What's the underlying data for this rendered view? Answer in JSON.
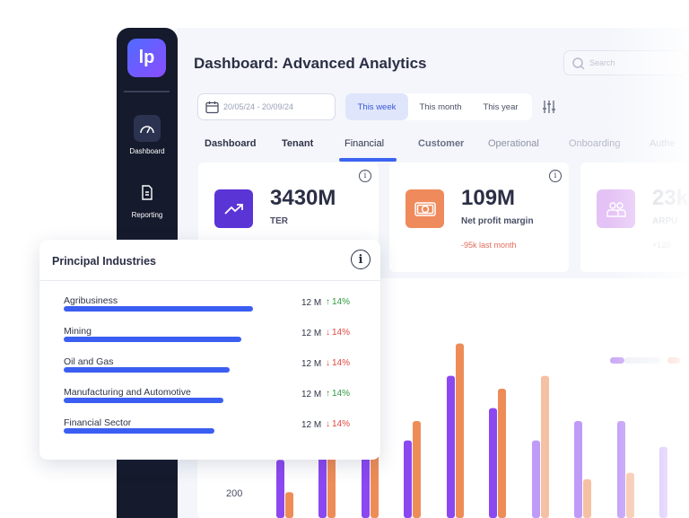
{
  "app": {
    "logo_text": "lp",
    "title": "Dashboard: Advanced Analytics",
    "search_placeholder": "Search"
  },
  "sidebar": {
    "items": [
      {
        "label": "Dashboard",
        "icon": "gauge-icon",
        "active": true
      },
      {
        "label": "Reporting",
        "icon": "document-icon",
        "active": false
      }
    ]
  },
  "filters": {
    "date_range": "20/05/24 - 20/09/24",
    "periods": [
      "This week",
      "This month",
      "This year"
    ],
    "active_period": "This week"
  },
  "tabs": [
    "Dashboard",
    "Tenant",
    "Financial",
    "Customer",
    "Operational",
    "Onboarding",
    "Authe"
  ],
  "active_tab": "Financial",
  "kpis": [
    {
      "value": "3430M",
      "label": "TER",
      "sub": "",
      "icon": "trending-up-icon",
      "color": "#5b34d6"
    },
    {
      "value": "109M",
      "label": "Net profit margin",
      "sub": "-95k last month",
      "icon": "cash-icon",
      "color": "#ef8a5c"
    },
    {
      "value": "23k",
      "label": "ARPU",
      "sub": "+120",
      "icon": "users-icon",
      "color": "#d9a9f2"
    }
  ],
  "chart_data": {
    "type": "bar",
    "y_tick_visible": "200",
    "series": [
      {
        "color": "#8b48f0",
        "values": [
          9,
          19,
          11,
          12,
          22,
          17,
          12,
          15,
          15,
          11
        ]
      },
      {
        "color": "#ee8c57",
        "values": [
          4,
          12,
          13,
          15,
          27,
          20,
          22,
          6,
          7,
          0
        ]
      }
    ],
    "legend_colors": [
      "#c8a7f5",
      "#f4b8a2"
    ]
  },
  "industries_panel": {
    "title": "Principal Industries",
    "rows": [
      {
        "name": "Agribusiness",
        "value": "12 M",
        "change": "14%",
        "direction": "up",
        "fill": 0.64
      },
      {
        "name": "Mining",
        "value": "12 M",
        "change": "14%",
        "direction": "down",
        "fill": 0.6
      },
      {
        "name": "Oil and Gas",
        "value": "12 M",
        "change": "14%",
        "direction": "down",
        "fill": 0.56
      },
      {
        "name": "Manufacturing and Automotive",
        "value": "12 M",
        "change": "14%",
        "direction": "up",
        "fill": 0.54
      },
      {
        "name": "Financial Sector",
        "value": "12 M",
        "change": "14%",
        "direction": "down",
        "fill": 0.51
      }
    ]
  }
}
